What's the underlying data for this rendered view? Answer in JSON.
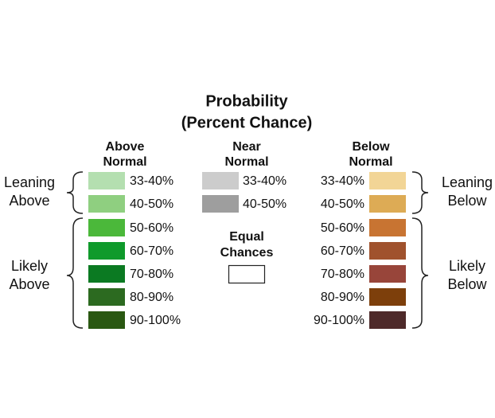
{
  "title": [
    "Probability",
    "(Percent Chance)"
  ],
  "columns": [
    {
      "header": [
        "Above",
        "Normal"
      ],
      "rows": [
        {
          "label": "33-40%",
          "color": "#b4dfb0"
        },
        {
          "label": "40-50%",
          "color": "#8fcf80"
        },
        {
          "label": "50-60%",
          "color": "#4bb83a"
        },
        {
          "label": "60-70%",
          "color": "#0f9a2b"
        },
        {
          "label": "70-80%",
          "color": "#0b7a22"
        },
        {
          "label": "80-90%",
          "color": "#2c6a20"
        },
        {
          "label": "90-100%",
          "color": "#2a5812"
        }
      ]
    },
    {
      "header": [
        "Near",
        "Normal"
      ],
      "rows": [
        {
          "label": "33-40%",
          "color": "#cccccc"
        },
        {
          "label": "40-50%",
          "color": "#9e9e9e"
        }
      ]
    },
    {
      "header": [
        "Below",
        "Normal"
      ],
      "rows": [
        {
          "label": "33-40%",
          "color": "#f2d596"
        },
        {
          "label": "40-50%",
          "color": "#ddab55"
        },
        {
          "label": "50-60%",
          "color": "#c87432"
        },
        {
          "label": "60-70%",
          "color": "#a0522d"
        },
        {
          "label": "70-80%",
          "color": "#98453a"
        },
        {
          "label": "80-90%",
          "color": "#7d3f0b"
        },
        {
          "label": "90-100%",
          "color": "#4e2a2a"
        }
      ]
    }
  ],
  "equal": {
    "header": [
      "Equal",
      "Chances"
    ],
    "color": "#ffffff"
  },
  "groups": {
    "leaning_above": [
      "Leaning",
      "Above"
    ],
    "likely_above": [
      "Likely",
      "Above"
    ],
    "leaning_below": [
      "Leaning",
      "Below"
    ],
    "likely_below": [
      "Likely",
      "Below"
    ]
  }
}
